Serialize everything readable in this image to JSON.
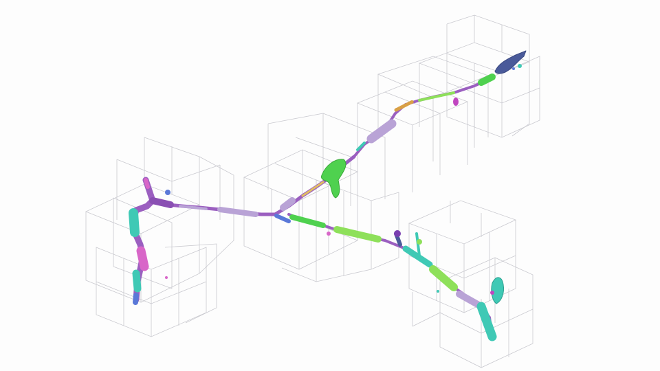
{
  "scene": {
    "background": "#fdfdfd",
    "grid_color": "#c9c9cf",
    "palette": {
      "purple": "#9b5fc0",
      "lavender": "#b9a3d6",
      "green": "#4fd14f",
      "lime": "#8ee05a",
      "teal": "#3fc9b5",
      "navy": "#4a5a9a",
      "pink": "#d866c8",
      "blue": "#5a78d8",
      "orange": "#d9a046",
      "magenta": "#c046c0"
    },
    "structures": [
      "voxel-grid",
      "neurite-left-branch",
      "neurite-central-trunk",
      "neurite-upper-branch",
      "neurite-lower-branch",
      "soma-fragment-green",
      "terminal-navy",
      "terminal-right-teal",
      "terminal-left-blue"
    ]
  }
}
